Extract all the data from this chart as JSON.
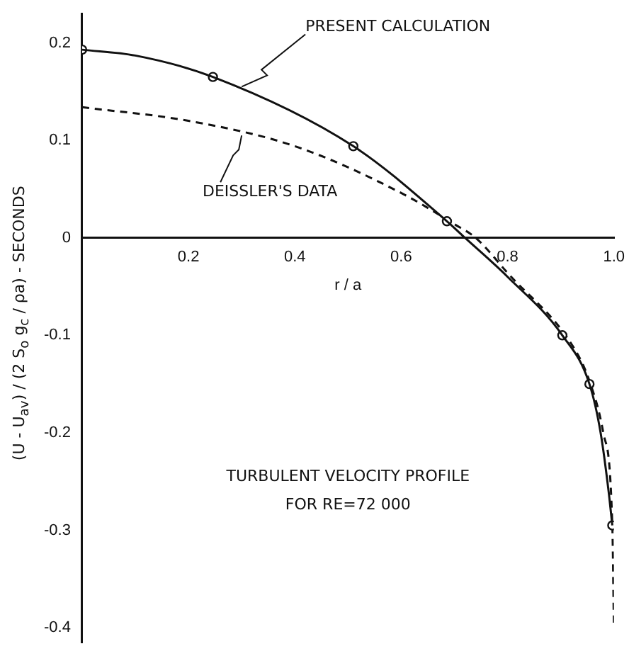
{
  "chart_data": {
    "type": "line",
    "ylabel": "(U - U$_{av}$) / (2 S$_{o}$ g$_{c}$ / ρa)  - SECONDS",
    "xlabel": "r / a",
    "xlim": [
      0,
      1
    ],
    "ylim": [
      -0.415,
      0.23
    ],
    "xticks": [
      0.2,
      0.4,
      0.6,
      0.8,
      {
        "value": 1,
        "label": "1.0"
      }
    ],
    "yticks": [
      0.2,
      0.1,
      0,
      -0.1,
      -0.2,
      -0.3,
      -0.4
    ],
    "grid": false,
    "legend": false,
    "series": [
      {
        "color": "#111111",
        "line_style": "solid",
        "marker": "none",
        "x": [
          0,
          0.1,
          0.246,
          0.51,
          0.686,
          0.72,
          0.8,
          0.903,
          0.954,
          0.975,
          0.99,
          0.997
        ],
        "values": [
          0.193,
          0.187,
          0.165,
          0.094,
          0.017,
          0,
          -0.04,
          -0.1,
          -0.15,
          -0.2,
          -0.26,
          -0.295
        ]
      },
      {
        "type": "scatter",
        "color": "#111111",
        "marker": "circle",
        "x": [
          0,
          0.246,
          0.51,
          0.686,
          0.903,
          0.954,
          0.997
        ],
        "values": [
          0.193,
          0.165,
          0.094,
          0.017,
          -0.1,
          -0.15,
          -0.295
        ]
      },
      {
        "color": "#111111",
        "line_style": "dashed",
        "marker": "none",
        "x": [
          0,
          0.2,
          0.4,
          0.6,
          0.7,
          0.74,
          0.8,
          0.926,
          0.954,
          0.98,
          0.997,
          1
        ],
        "values": [
          0.134,
          0.12,
          0.094,
          0.046,
          0.014,
          0,
          -0.036,
          -0.114,
          -0.147,
          -0.2,
          -0.295,
          -0.4
        ]
      }
    ],
    "annotations": [
      {
        "text": "PRESENT CALCULATION",
        "x": 0.3,
        "y": 0.155
      },
      {
        "text": "DEISSLER'S DATA",
        "x": 0.3,
        "y": 0.105
      },
      "TURBULENT VELOCITY PROFILE",
      "FOR RE=72 000"
    ]
  }
}
